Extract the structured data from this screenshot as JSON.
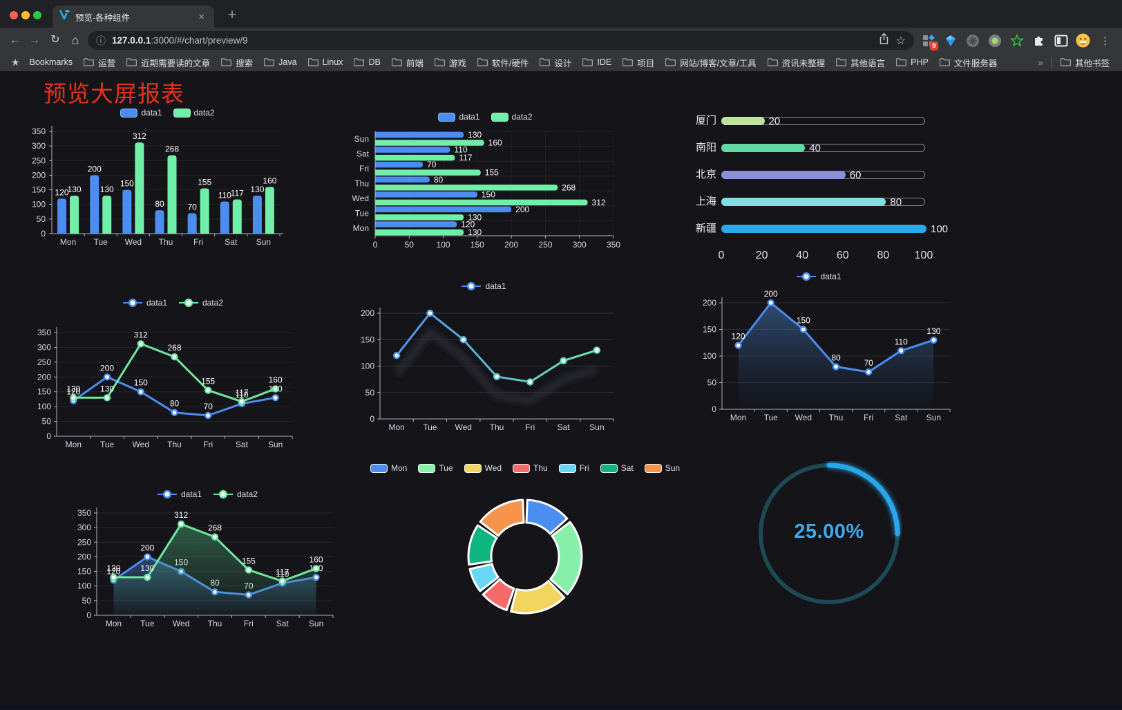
{
  "browser": {
    "tab": {
      "title": "预览-各种组件",
      "close_icon": "×",
      "new_tab_icon": "+"
    },
    "toolbar": {
      "back_icon": "←",
      "forward_icon": "→",
      "reload_icon": "↻",
      "home_icon": "⌂",
      "info_icon": "ⓘ",
      "star_icon": "☆",
      "menu_icon": "⋮",
      "url_host": "127.0.0.1",
      "url_rest": ":3000/#/chart/preview/9",
      "extension_badge_count": "9"
    },
    "bookmarks_label": "Bookmarks",
    "bookmarks_star": "★",
    "bookmarks": [
      "运营",
      "近期需要读的文章",
      "搜索",
      "Java",
      "Linux",
      "DB",
      "前端",
      "游戏",
      "软件/硬件",
      "设计",
      "IDE",
      "项目",
      "网站/博客/文章/工具",
      "资讯未整理",
      "其他语言",
      "PHP",
      "文件服务器"
    ],
    "overflow_icon": "»",
    "other_bookmarks": "其他书签"
  },
  "page": {
    "title": "预览大屏报表",
    "title_color": "#e8301d"
  },
  "chart_data": [
    {
      "id": "grouped-bar",
      "type": "bar",
      "categories": [
        "Mon",
        "Tue",
        "Wed",
        "Thu",
        "Fri",
        "Sat",
        "Sun"
      ],
      "series": [
        {
          "name": "data1",
          "color": "#4c8df2",
          "values": [
            120,
            200,
            150,
            80,
            70,
            110,
            130
          ]
        },
        {
          "name": "data2",
          "color": "#70efa9",
          "values": [
            130,
            130,
            312,
            268,
            155,
            117,
            160
          ]
        }
      ],
      "ylim": [
        0,
        350
      ],
      "ytick": 50,
      "legend_position": "top",
      "grid": true
    },
    {
      "id": "horizontal-bar",
      "type": "bar",
      "orientation": "horizontal",
      "categories_top_to_bottom": [
        "Sun",
        "Sat",
        "Fri",
        "Thu",
        "Wed",
        "Tue",
        "Mon"
      ],
      "series": [
        {
          "name": "data1",
          "color": "#4c8df2",
          "values": [
            130,
            110,
            70,
            80,
            150,
            200,
            120
          ]
        },
        {
          "name": "data2",
          "color": "#70efa9",
          "values": [
            160,
            117,
            155,
            268,
            312,
            130,
            130
          ]
        }
      ],
      "xlim": [
        0,
        350
      ],
      "xtick": 50,
      "legend_position": "top"
    },
    {
      "id": "capsule-progress",
      "type": "bar",
      "orientation": "horizontal-capsule",
      "max": 100,
      "axis_ticks": [
        0,
        20,
        40,
        60,
        80,
        100
      ],
      "rows": [
        {
          "label": "厦门",
          "value": 20,
          "color": "#bce29b"
        },
        {
          "label": "南阳",
          "value": 40,
          "color": "#62d9a5"
        },
        {
          "label": "北京",
          "value": 60,
          "color": "#8b90d9"
        },
        {
          "label": "上海",
          "value": 80,
          "color": "#83dee1"
        },
        {
          "label": "新疆",
          "value": 100,
          "color": "#2ba8e8"
        }
      ]
    },
    {
      "id": "line-two-series",
      "type": "line",
      "categories": [
        "Mon",
        "Tue",
        "Wed",
        "Thu",
        "Fri",
        "Sat",
        "Sun"
      ],
      "series": [
        {
          "name": "data1",
          "color": "#4c8df2",
          "values": [
            120,
            200,
            150,
            80,
            70,
            110,
            130
          ]
        },
        {
          "name": "data2",
          "color": "#6fe8a0",
          "values": [
            130,
            130,
            312,
            268,
            155,
            117,
            160
          ]
        }
      ],
      "ylim": [
        0,
        350
      ],
      "ytick": 50,
      "value_labels": true,
      "legend_position": "top"
    },
    {
      "id": "line-gradient",
      "type": "line",
      "categories": [
        "Mon",
        "Tue",
        "Wed",
        "Thu",
        "Fri",
        "Sat",
        "Sun"
      ],
      "series": [
        {
          "name": "data1",
          "color": "#4c8df2",
          "gradient": [
            "#4c8df2",
            "#70efa9"
          ],
          "values": [
            120,
            200,
            150,
            80,
            70,
            110,
            130
          ]
        }
      ],
      "ylim": [
        0,
        200
      ],
      "ytick": 50,
      "value_labels": false,
      "legend_position": "top"
    },
    {
      "id": "line-area",
      "type": "area",
      "categories": [
        "Mon",
        "Tue",
        "Wed",
        "Thu",
        "Fri",
        "Sat",
        "Sun"
      ],
      "series": [
        {
          "name": "data1",
          "color": "#4c8df2",
          "values": [
            120,
            200,
            150,
            80,
            70,
            110,
            130
          ]
        }
      ],
      "ylim": [
        0,
        200
      ],
      "ytick": 50,
      "value_labels": true,
      "legend_position": "top"
    },
    {
      "id": "two-area",
      "type": "area",
      "categories": [
        "Mon",
        "Tue",
        "Wed",
        "Thu",
        "Fri",
        "Sat",
        "Sun"
      ],
      "series": [
        {
          "name": "data1",
          "color": "#4c8df2",
          "values": [
            120,
            200,
            150,
            80,
            70,
            110,
            130
          ]
        },
        {
          "name": "data2",
          "color": "#6fe8a0",
          "values": [
            130,
            130,
            312,
            268,
            155,
            117,
            160
          ]
        }
      ],
      "ylim": [
        0,
        350
      ],
      "ytick": 50,
      "value_labels": true,
      "legend_position": "top"
    },
    {
      "id": "donut",
      "type": "pie",
      "categories": [
        "Mon",
        "Tue",
        "Wed",
        "Thu",
        "Fri",
        "Sat",
        "Sun"
      ],
      "values": [
        120,
        200,
        150,
        80,
        70,
        110,
        130
      ],
      "colors": [
        "#4c8df2",
        "#86efa9",
        "#f2d55f",
        "#f56b6b",
        "#69d6f5",
        "#0eb57e",
        "#f5944a"
      ],
      "legend_position": "top"
    },
    {
      "id": "gauge",
      "type": "gauge",
      "percent": 25,
      "label": "25.00%",
      "color": "#2aa7ea",
      "track_color": "#1d4a53"
    }
  ]
}
